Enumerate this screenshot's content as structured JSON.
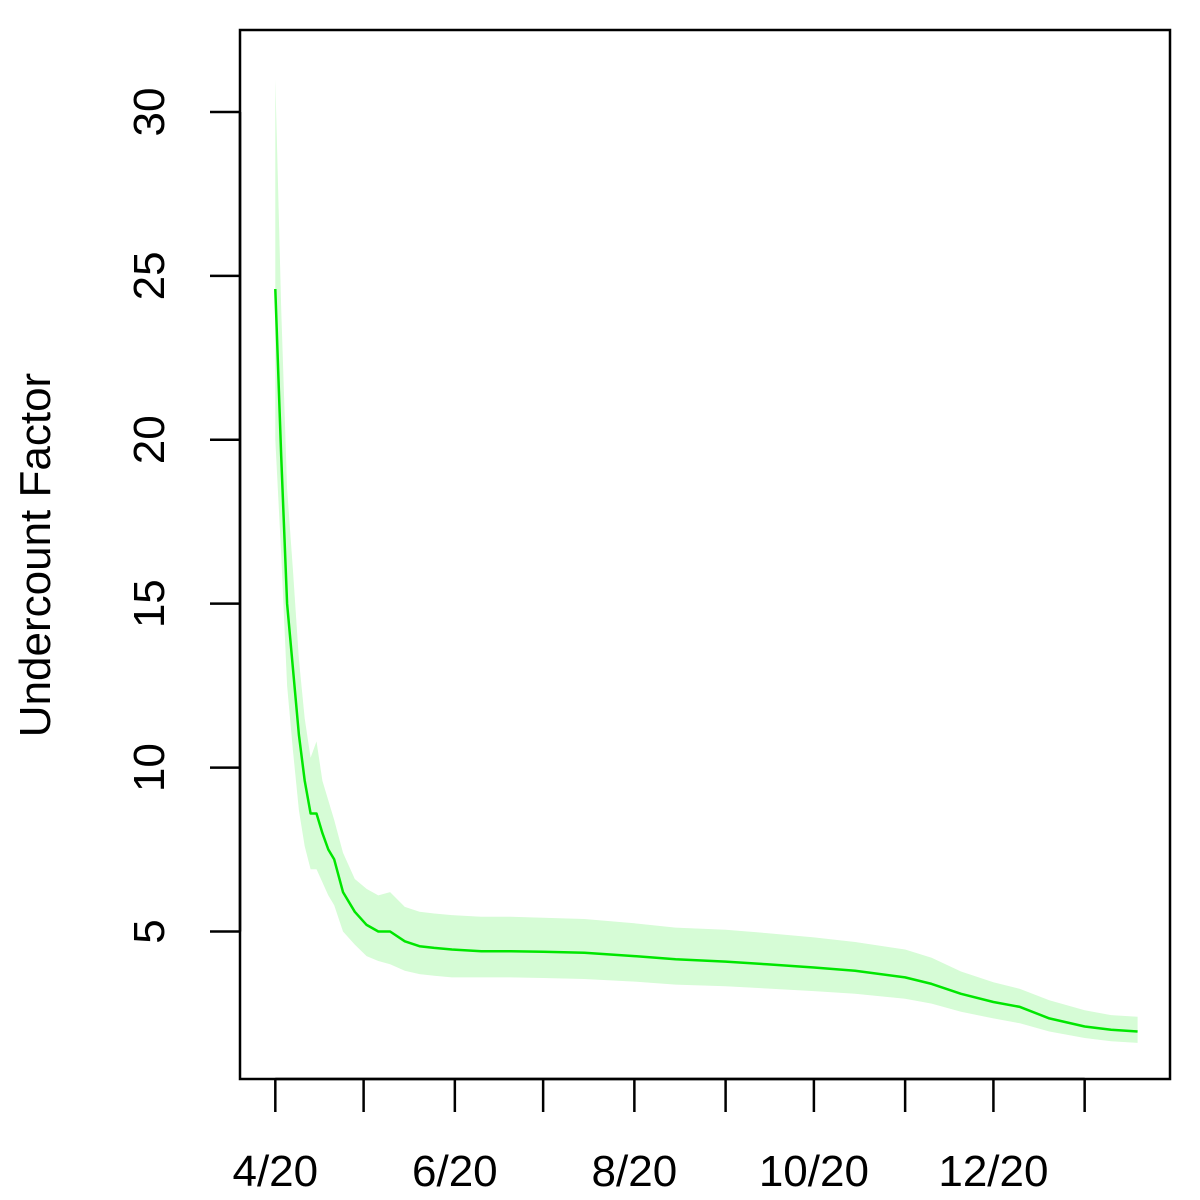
{
  "chart_data": {
    "type": "line",
    "title": "",
    "xlabel": "",
    "ylabel": "Undercount Factor",
    "x_tick_labels": [
      "4/20",
      "6/20",
      "8/20",
      "10/20",
      "12/20"
    ],
    "x_tick_dates": [
      "2020-04-01",
      "2020-05-01",
      "2020-06-01",
      "2020-07-01",
      "2020-08-01",
      "2020-09-01",
      "2020-10-01",
      "2020-11-01",
      "2020-12-01",
      "2021-01-01"
    ],
    "y_tick_labels": [
      "5",
      "10",
      "15",
      "20",
      "25",
      "30"
    ],
    "y_ticks": [
      5,
      10,
      15,
      20,
      25,
      30
    ],
    "xlim": [
      "2020-03-20",
      "2021-01-30"
    ],
    "ylim": [
      0.5,
      32.5
    ],
    "grid": false,
    "legend": "none",
    "colors": {
      "line": "#00e600",
      "band": "#d6fcd6"
    },
    "series": [
      {
        "x": [
          "2020-04-01",
          "2020-04-03",
          "2020-04-05",
          "2020-04-07",
          "2020-04-09",
          "2020-04-11",
          "2020-04-13",
          "2020-04-15",
          "2020-04-17",
          "2020-04-19",
          "2020-04-21",
          "2020-04-24",
          "2020-04-28",
          "2020-05-02",
          "2020-05-06",
          "2020-05-10",
          "2020-05-15",
          "2020-05-20",
          "2020-05-25",
          "2020-05-31",
          "2020-06-10",
          "2020-06-20",
          "2020-07-01",
          "2020-07-15",
          "2020-08-01",
          "2020-08-15",
          "2020-09-01",
          "2020-09-15",
          "2020-10-01",
          "2020-10-15",
          "2020-11-01",
          "2020-11-10",
          "2020-11-20",
          "2020-12-01",
          "2020-12-10",
          "2020-12-20",
          "2021-01-01",
          "2021-01-10",
          "2021-01-19"
        ],
        "y": [
          24.6,
          19.5,
          15.0,
          13.0,
          11.0,
          9.6,
          8.6,
          8.6,
          8.0,
          7.5,
          7.2,
          6.2,
          5.6,
          5.2,
          5.0,
          5.0,
          4.7,
          4.55,
          4.5,
          4.45,
          4.4,
          4.4,
          4.38,
          4.35,
          4.25,
          4.15,
          4.08,
          4.0,
          3.9,
          3.8,
          3.6,
          3.4,
          3.1,
          2.85,
          2.7,
          2.35,
          2.1,
          2.0,
          1.95
        ],
        "lower": [
          20.0,
          16.5,
          12.5,
          10.5,
          8.7,
          7.6,
          6.9,
          6.9,
          6.5,
          6.1,
          5.8,
          5.0,
          4.6,
          4.25,
          4.1,
          4.0,
          3.8,
          3.7,
          3.65,
          3.6,
          3.6,
          3.6,
          3.58,
          3.55,
          3.47,
          3.38,
          3.33,
          3.26,
          3.18,
          3.1,
          2.95,
          2.8,
          2.55,
          2.35,
          2.2,
          1.95,
          1.75,
          1.65,
          1.6
        ],
        "upper": [
          31.0,
          24.0,
          18.5,
          16.0,
          13.3,
          11.5,
          10.3,
          10.8,
          9.6,
          9.0,
          8.4,
          7.4,
          6.6,
          6.3,
          6.1,
          6.2,
          5.75,
          5.6,
          5.55,
          5.5,
          5.45,
          5.45,
          5.42,
          5.38,
          5.25,
          5.12,
          5.05,
          4.95,
          4.82,
          4.68,
          4.45,
          4.2,
          3.78,
          3.45,
          3.25,
          2.9,
          2.6,
          2.45,
          2.4
        ]
      }
    ]
  }
}
